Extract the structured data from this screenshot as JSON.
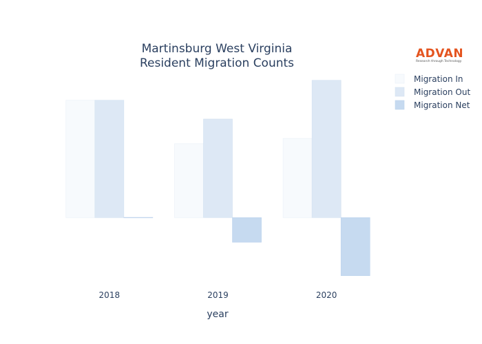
{
  "chart_data": {
    "type": "bar",
    "title": [
      "Martinsburg West Virginia",
      "Resident Migration Counts"
    ],
    "xlabel": "year",
    "ylabel": "",
    "categories": [
      "2018",
      "2019",
      "2020"
    ],
    "series": [
      {
        "name": "Migration In",
        "values": [
          1000,
          630,
          675
        ],
        "color": "#f7fafd",
        "stroke": "#e9f0f8"
      },
      {
        "name": "Migration Out",
        "values": [
          1000,
          840,
          1170
        ],
        "color": "#dde8f5",
        "stroke": "#d3e1f1"
      },
      {
        "name": "Migration Net",
        "values": [
          0,
          -210,
          -495
        ],
        "color": "#c6daf0",
        "stroke": "#bcd2ec"
      }
    ],
    "ylim": [
      -520,
      1180
    ],
    "grid": false,
    "legend_position": "top-right"
  },
  "logo": {
    "name": "ADVAN",
    "tagline": "Research through Technology",
    "color": "#e4541f"
  }
}
